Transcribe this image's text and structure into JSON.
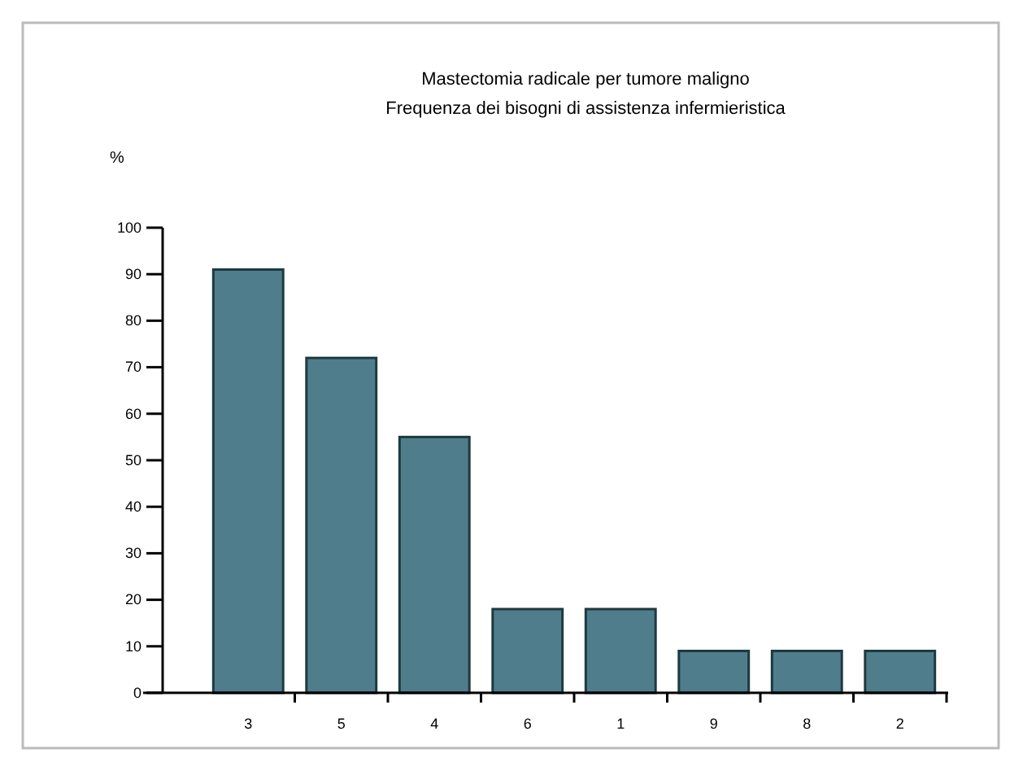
{
  "chart_data": {
    "type": "bar",
    "title": "Mastectomia radicale per tumore maligno",
    "subtitle": "Frequenza dei bisogni di assistenza infermieristica",
    "ylabel": "%",
    "categories": [
      "3",
      "5",
      "4",
      "6",
      "1",
      "9",
      "8",
      "2"
    ],
    "values": [
      91,
      72,
      55,
      18,
      18,
      9,
      9,
      9
    ],
    "color": "#4f7d8c",
    "ylim": [
      0,
      100
    ],
    "yticks": [
      0,
      10,
      20,
      30,
      40,
      50,
      60,
      70,
      80,
      90,
      100
    ],
    "grid": false
  }
}
